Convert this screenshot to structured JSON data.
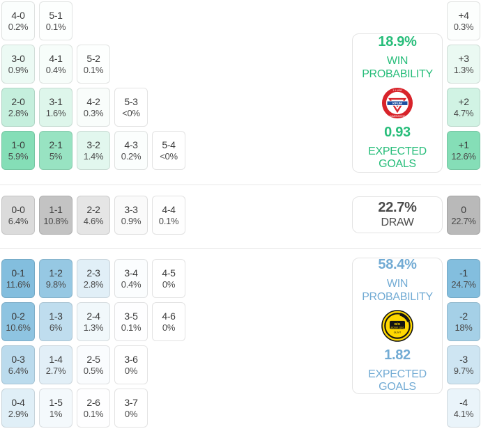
{
  "colors": {
    "home_accent": "#27bd7a",
    "away_accent": "#72abd4",
    "draw_accent": "#4a4a4a",
    "home_tile_base": "#85deb7",
    "away_tile_base": "#83bede",
    "draw_tile_base": "#c3c3c3",
    "separator": "#e7e7e7"
  },
  "home": {
    "grid_rows": [
      [
        {
          "score": "4-0",
          "pct": "0.2%",
          "bg": "#fbfefd"
        },
        {
          "score": "5-1",
          "pct": "0.1%",
          "bg": "#fdfffe"
        }
      ],
      [
        {
          "score": "3-0",
          "pct": "0.9%",
          "bg": "#ecfaf4"
        },
        {
          "score": "4-1",
          "pct": "0.4%",
          "bg": "#f7fdfa"
        },
        {
          "score": "5-2",
          "pct": "0.1%",
          "bg": "#fdfffe"
        }
      ],
      [
        {
          "score": "2-0",
          "pct": "2.8%",
          "bg": "#c5efdd"
        },
        {
          "score": "3-1",
          "pct": "1.6%",
          "bg": "#def6eb"
        },
        {
          "score": "4-2",
          "pct": "0.3%",
          "bg": "#f9fdfb"
        },
        {
          "score": "5-3",
          "pct": "<0%",
          "bg": "#ffffff"
        }
      ],
      [
        {
          "score": "1-0",
          "pct": "5.9%",
          "bg": "#85deb7"
        },
        {
          "score": "2-1",
          "pct": "5%",
          "bg": "#98e3c2"
        },
        {
          "score": "3-2",
          "pct": "1.4%",
          "bg": "#e2f7ee"
        },
        {
          "score": "4-3",
          "pct": "0.2%",
          "bg": "#fbfefd"
        },
        {
          "score": "5-4",
          "pct": "<0%",
          "bg": "#ffffff"
        }
      ]
    ],
    "diffs": [
      {
        "label": "+4",
        "pct": "0.3%",
        "bg": "#fcfefd"
      },
      {
        "label": "+3",
        "pct": "1.3%",
        "bg": "#eaf9f2"
      },
      {
        "label": "+2",
        "pct": "4.7%",
        "bg": "#d1f3e4"
      },
      {
        "label": "+1",
        "pct": "12.6%",
        "bg": "#85deb7"
      }
    ],
    "card": {
      "win_pct": "18.9%",
      "win_label": "WIN PROBABILITY",
      "xg": "0.93",
      "xg_label": "EXPECTED GOALS"
    }
  },
  "draw": {
    "grid_rows": [
      [
        {
          "score": "0-0",
          "pct": "6.4%",
          "bg": "#dbdbdb"
        },
        {
          "score": "1-1",
          "pct": "10.8%",
          "bg": "#c3c3c3"
        },
        {
          "score": "2-2",
          "pct": "4.6%",
          "bg": "#e5e5e5"
        },
        {
          "score": "3-3",
          "pct": "0.9%",
          "bg": "#fafafa"
        },
        {
          "score": "4-4",
          "pct": "0.1%",
          "bg": "#fefefe"
        }
      ]
    ],
    "diffs": [
      {
        "label": "0",
        "pct": "22.7%",
        "bg": "#b9b9b9"
      }
    ],
    "card": {
      "pct": "22.7%",
      "label": "DRAW"
    }
  },
  "away": {
    "grid_rows": [
      [
        {
          "score": "0-1",
          "pct": "11.6%",
          "bg": "#83bede"
        },
        {
          "score": "1-2",
          "pct": "9.8%",
          "bg": "#96c8e3"
        },
        {
          "score": "2-3",
          "pct": "2.8%",
          "bg": "#e1eff7"
        },
        {
          "score": "3-4",
          "pct": "0.4%",
          "bg": "#fbfdfe"
        },
        {
          "score": "4-5",
          "pct": "0%",
          "bg": "#ffffff"
        }
      ],
      [
        {
          "score": "0-2",
          "pct": "10.6%",
          "bg": "#8ec4e1"
        },
        {
          "score": "1-3",
          "pct": "6%",
          "bg": "#bfddee"
        },
        {
          "score": "2-4",
          "pct": "1.3%",
          "bg": "#f1f8fb"
        },
        {
          "score": "3-5",
          "pct": "0.1%",
          "bg": "#fefeff"
        },
        {
          "score": "4-6",
          "pct": "0%",
          "bg": "#ffffff"
        }
      ],
      [
        {
          "score": "0-3",
          "pct": "6.4%",
          "bg": "#bbdbed"
        },
        {
          "score": "1-4",
          "pct": "2.7%",
          "bg": "#e2eff7"
        },
        {
          "score": "2-5",
          "pct": "0.5%",
          "bg": "#fafcfe"
        },
        {
          "score": "3-6",
          "pct": "0%",
          "bg": "#ffffff"
        }
      ],
      [
        {
          "score": "0-4",
          "pct": "2.9%",
          "bg": "#e0eff7"
        },
        {
          "score": "1-5",
          "pct": "1%",
          "bg": "#f4f9fc"
        },
        {
          "score": "2-6",
          "pct": "0.1%",
          "bg": "#fefeff"
        },
        {
          "score": "3-7",
          "pct": "0%",
          "bg": "#ffffff"
        }
      ]
    ],
    "diffs": [
      {
        "label": "-1",
        "pct": "24.7%",
        "bg": "#83bede"
      },
      {
        "label": "-2",
        "pct": "18%",
        "bg": "#a5d0e7"
      },
      {
        "label": "-3",
        "pct": "9.7%",
        "bg": "#cee5f2"
      },
      {
        "label": "-4",
        "pct": "4.1%",
        "bg": "#eaf4fa"
      }
    ],
    "card": {
      "win_pct": "58.4%",
      "win_label": "WIN PROBABILITY",
      "xg": "1.82",
      "xg_label": "EXPECTED GOALS"
    }
  }
}
